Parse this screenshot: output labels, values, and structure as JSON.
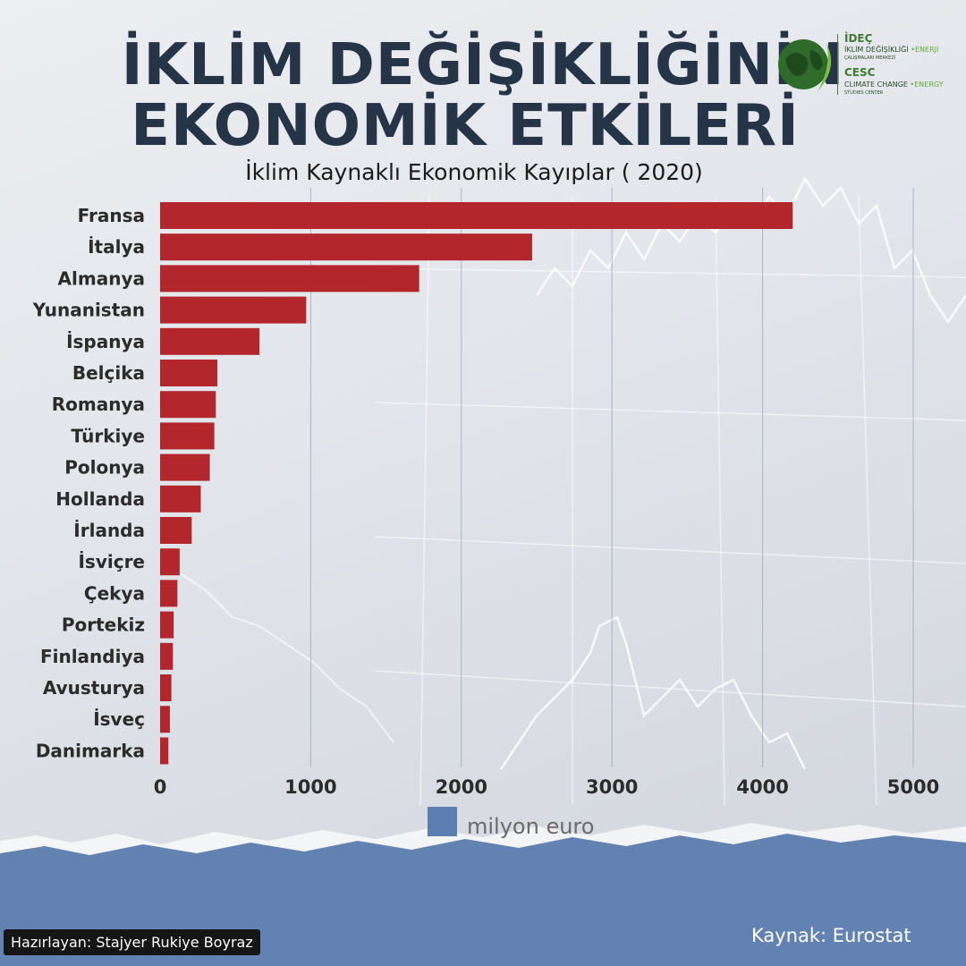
{
  "header": {
    "title_line1": "İKLİM DEĞİŞİKLİĞİNİN",
    "title_line2": "EKONOMİK ETKİLERİ",
    "subtitle": "İklim Kaynaklı Ekonomik Kayıplar ( 2020)"
  },
  "logo": {
    "brand": "İDEÇ",
    "line1": "İKLİM DEĞİŞİKLİĞİ",
    "line1_suffix": "•ENERJİ",
    "line2": "ÇALIŞMALARI MERKEZİ",
    "brand_en": "CESC",
    "line3": "CLIMATE CHANGE",
    "line3_suffix": "•ENERGY",
    "line4": "STUDIES CENTER",
    "icon": "globe-leaf-icon"
  },
  "chart_data": {
    "type": "bar",
    "orientation": "horizontal",
    "title": "İklim Kaynaklı Ekonomik Kayıplar ( 2020)",
    "categories": [
      "Fransa",
      "İtalya",
      "Almanya",
      "Yunanistan",
      "İspanya",
      "Belçika",
      "Romanya",
      "Türkiye",
      "Polonya",
      "Hollanda",
      "İrlanda",
      "İsviçre",
      "Çekya",
      "Portekiz",
      "Finlandiya",
      "Avusturya",
      "İsveç",
      "Danimarka"
    ],
    "series": [
      {
        "name": "milyon euro",
        "values": [
          4200,
          2470,
          1720,
          970,
          660,
          380,
          370,
          360,
          330,
          270,
          210,
          130,
          115,
          90,
          85,
          75,
          65,
          55
        ]
      }
    ],
    "xlim": [
      0,
      5000
    ],
    "xticks": [
      "0",
      "1000",
      "2000",
      "3000",
      "4000",
      "5000"
    ],
    "grid": true,
    "legend": "bottom",
    "bar_color": "#b3262b",
    "legend_color": "#5b7db0"
  },
  "footer": {
    "credit": "Hazırlayan: Stajyer Rukiye Boyraz",
    "source": "Kaynak: Eurostat",
    "band_color": "#6282b2"
  }
}
